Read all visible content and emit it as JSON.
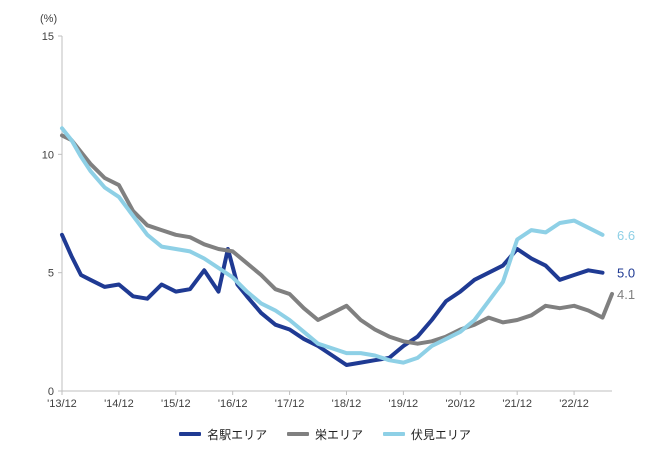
{
  "chart_data": {
    "type": "line",
    "unit_label": "(%)",
    "ylim": [
      0,
      15
    ],
    "yticks": [
      "0",
      "5",
      "10",
      "15"
    ],
    "xlim": [
      "2013-12",
      "2023-08"
    ],
    "xticks": [
      {
        "x": "2013-12",
        "label": "'13/12"
      },
      {
        "x": "2014-12",
        "label": "'14/12"
      },
      {
        "x": "2015-12",
        "label": "'15/12"
      },
      {
        "x": "2016-12",
        "label": "'16/12"
      },
      {
        "x": "2017-12",
        "label": "'17/12"
      },
      {
        "x": "2018-12",
        "label": "'18/12"
      },
      {
        "x": "2019-12",
        "label": "'19/12"
      },
      {
        "x": "2020-12",
        "label": "'20/12"
      },
      {
        "x": "2021-12",
        "label": "'21/12"
      },
      {
        "x": "2022-12",
        "label": "'22/12"
      }
    ],
    "grid": false,
    "legend_position": "bottom",
    "series": [
      {
        "name": "名駅エリア",
        "color": "#1F3A93",
        "end_label": "5.0",
        "points": [
          [
            "2013-12",
            6.6
          ],
          [
            "2014-02",
            5.7
          ],
          [
            "2014-04",
            4.9
          ],
          [
            "2014-06",
            4.7
          ],
          [
            "2014-09",
            4.4
          ],
          [
            "2014-12",
            4.5
          ],
          [
            "2015-03",
            4.0
          ],
          [
            "2015-06",
            3.9
          ],
          [
            "2015-09",
            4.5
          ],
          [
            "2015-12",
            4.2
          ],
          [
            "2016-03",
            4.3
          ],
          [
            "2016-06",
            5.1
          ],
          [
            "2016-09",
            4.2
          ],
          [
            "2016-11",
            6.0
          ],
          [
            "2017-01",
            4.5
          ],
          [
            "2017-03",
            4.0
          ],
          [
            "2017-06",
            3.3
          ],
          [
            "2017-09",
            2.8
          ],
          [
            "2017-12",
            2.6
          ],
          [
            "2018-03",
            2.2
          ],
          [
            "2018-06",
            1.9
          ],
          [
            "2018-09",
            1.5
          ],
          [
            "2018-12",
            1.1
          ],
          [
            "2019-03",
            1.2
          ],
          [
            "2019-06",
            1.3
          ],
          [
            "2019-09",
            1.4
          ],
          [
            "2019-12",
            1.9
          ],
          [
            "2020-03",
            2.3
          ],
          [
            "2020-06",
            3.0
          ],
          [
            "2020-09",
            3.8
          ],
          [
            "2020-12",
            4.2
          ],
          [
            "2021-03",
            4.7
          ],
          [
            "2021-06",
            5.0
          ],
          [
            "2021-09",
            5.3
          ],
          [
            "2021-12",
            6.0
          ],
          [
            "2022-03",
            5.6
          ],
          [
            "2022-06",
            5.3
          ],
          [
            "2022-09",
            4.7
          ],
          [
            "2022-12",
            4.9
          ],
          [
            "2023-03",
            5.1
          ],
          [
            "2023-06",
            5.0
          ]
        ]
      },
      {
        "name": "栄エリア",
        "color": "#808080",
        "end_label": "4.1",
        "points": [
          [
            "2013-12",
            10.8
          ],
          [
            "2014-02",
            10.6
          ],
          [
            "2014-04",
            10.1
          ],
          [
            "2014-06",
            9.6
          ],
          [
            "2014-09",
            9.0
          ],
          [
            "2014-12",
            8.7
          ],
          [
            "2015-03",
            7.6
          ],
          [
            "2015-06",
            7.0
          ],
          [
            "2015-09",
            6.8
          ],
          [
            "2015-12",
            6.6
          ],
          [
            "2016-03",
            6.5
          ],
          [
            "2016-06",
            6.2
          ],
          [
            "2016-09",
            6.0
          ],
          [
            "2016-12",
            5.9
          ],
          [
            "2017-03",
            5.4
          ],
          [
            "2017-06",
            4.9
          ],
          [
            "2017-09",
            4.3
          ],
          [
            "2017-12",
            4.1
          ],
          [
            "2018-03",
            3.5
          ],
          [
            "2018-06",
            3.0
          ],
          [
            "2018-09",
            3.3
          ],
          [
            "2018-12",
            3.6
          ],
          [
            "2019-03",
            3.0
          ],
          [
            "2019-06",
            2.6
          ],
          [
            "2019-09",
            2.3
          ],
          [
            "2019-12",
            2.1
          ],
          [
            "2020-03",
            2.0
          ],
          [
            "2020-06",
            2.1
          ],
          [
            "2020-09",
            2.3
          ],
          [
            "2020-12",
            2.6
          ],
          [
            "2021-03",
            2.8
          ],
          [
            "2021-06",
            3.1
          ],
          [
            "2021-09",
            2.9
          ],
          [
            "2021-12",
            3.0
          ],
          [
            "2022-03",
            3.2
          ],
          [
            "2022-06",
            3.6
          ],
          [
            "2022-09",
            3.5
          ],
          [
            "2022-12",
            3.6
          ],
          [
            "2023-03",
            3.4
          ],
          [
            "2023-06",
            3.1
          ],
          [
            "2023-08",
            4.1
          ]
        ]
      },
      {
        "name": "伏見エリア",
        "color": "#8ED0E6",
        "end_label": "6.6",
        "points": [
          [
            "2013-12",
            11.1
          ],
          [
            "2014-02",
            10.6
          ],
          [
            "2014-04",
            9.9
          ],
          [
            "2014-06",
            9.3
          ],
          [
            "2014-09",
            8.6
          ],
          [
            "2014-12",
            8.2
          ],
          [
            "2015-03",
            7.4
          ],
          [
            "2015-06",
            6.6
          ],
          [
            "2015-09",
            6.1
          ],
          [
            "2015-12",
            6.0
          ],
          [
            "2016-03",
            5.9
          ],
          [
            "2016-06",
            5.6
          ],
          [
            "2016-09",
            5.2
          ],
          [
            "2016-12",
            4.8
          ],
          [
            "2017-03",
            4.2
          ],
          [
            "2017-06",
            3.7
          ],
          [
            "2017-09",
            3.4
          ],
          [
            "2017-12",
            3.0
          ],
          [
            "2018-03",
            2.5
          ],
          [
            "2018-06",
            2.0
          ],
          [
            "2018-09",
            1.8
          ],
          [
            "2018-12",
            1.6
          ],
          [
            "2019-03",
            1.6
          ],
          [
            "2019-06",
            1.5
          ],
          [
            "2019-09",
            1.3
          ],
          [
            "2019-12",
            1.2
          ],
          [
            "2020-03",
            1.4
          ],
          [
            "2020-06",
            1.9
          ],
          [
            "2020-09",
            2.2
          ],
          [
            "2020-12",
            2.5
          ],
          [
            "2021-03",
            3.0
          ],
          [
            "2021-06",
            3.8
          ],
          [
            "2021-09",
            4.6
          ],
          [
            "2021-12",
            6.4
          ],
          [
            "2022-03",
            6.8
          ],
          [
            "2022-06",
            6.7
          ],
          [
            "2022-09",
            7.1
          ],
          [
            "2022-12",
            7.2
          ],
          [
            "2023-03",
            6.9
          ],
          [
            "2023-06",
            6.6
          ]
        ]
      }
    ]
  }
}
